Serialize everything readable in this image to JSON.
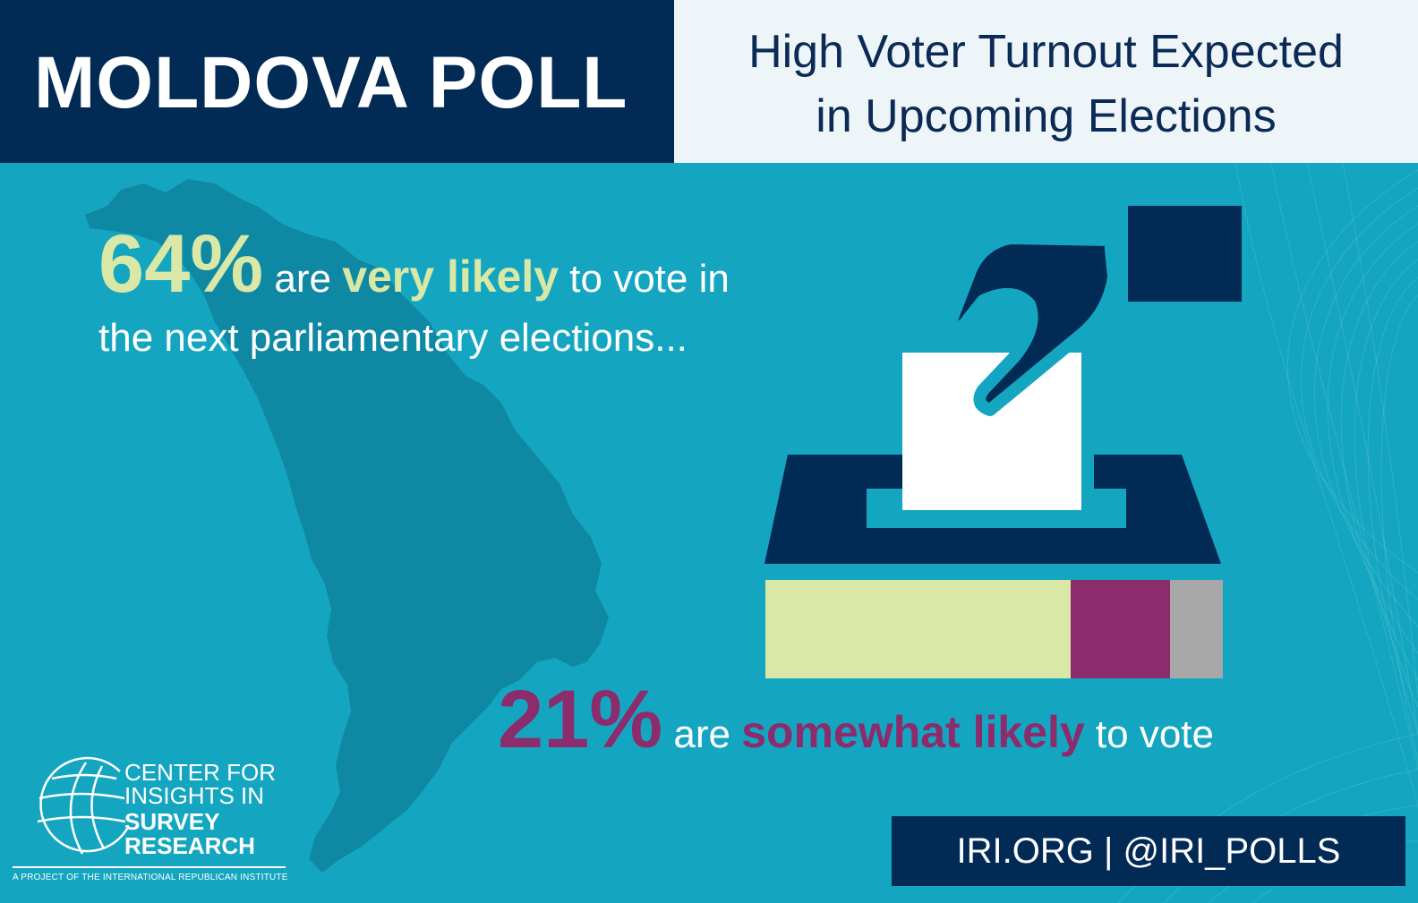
{
  "header": {
    "title": "MOLDOVA POLL",
    "subtitle_line1": "High Voter Turnout Expected",
    "subtitle_line2": "in Upcoming Elections"
  },
  "stat_very_likely": {
    "percent": "64%",
    "pre": " are ",
    "highlight": "very likely",
    "post": " to vote in",
    "line2": "the next parliamentary elections..."
  },
  "stat_somewhat_likely": {
    "percent": "21%",
    "pre": " are ",
    "highlight": "somewhat likely",
    "post": " to vote"
  },
  "turnout_bar": [
    {
      "value": 64,
      "color": "#d9e8a6"
    },
    {
      "value": 21,
      "color": "#8c2c6c"
    },
    {
      "value": 11,
      "color": "#a8a8a8"
    }
  ],
  "logo": {
    "line1": "CENTER FOR",
    "line2": "INSIGHTS IN",
    "line3": "SURVEY",
    "line4": "RESEARCH",
    "tagline": "A PROJECT OF THE INTERNATIONAL REPUBLICAN INSTITUTE"
  },
  "footer": {
    "text": "IRI.ORG | @IRI_POLLS"
  },
  "colors": {
    "navy": "#012a55",
    "teal": "#14a6c0",
    "map": "#0f88a3",
    "green": "#d9e8a6",
    "plum": "#8c2c6c",
    "gray": "#a8a8a8"
  }
}
